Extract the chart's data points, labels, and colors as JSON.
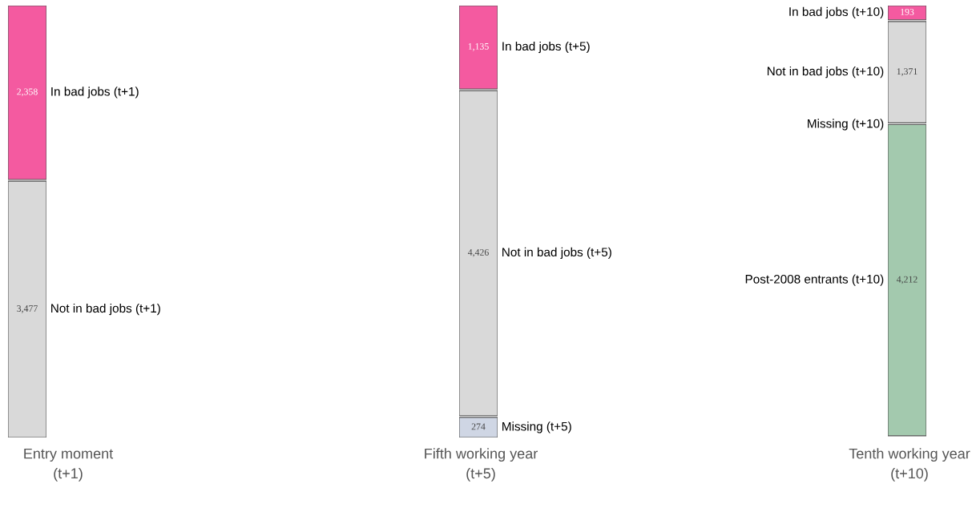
{
  "chart_data": [
    {
      "type": "other",
      "xlabel": "Entry moment\n(t+1)",
      "categories": [
        "In bad jobs (t+1)",
        "Not in bad jobs (t+1)"
      ],
      "values": [
        2358,
        3477
      ],
      "colors": [
        "#f45aa0",
        "#d9d9d9"
      ],
      "value_labels": [
        "2,358",
        "3,477"
      ]
    },
    {
      "type": "other",
      "xlabel": "Fifth working year\n(t+5)",
      "categories": [
        "In bad jobs (t+5)",
        "Not in bad jobs (t+5)",
        "Missing (t+5)"
      ],
      "values": [
        1135,
        4426,
        274
      ],
      "colors": [
        "#f45aa0",
        "#d9d9d9",
        "#cfd6e4"
      ],
      "value_labels": [
        "1,135",
        "4,426",
        "274"
      ]
    },
    {
      "type": "other",
      "xlabel": "Tenth working year\n(t+10)",
      "categories": [
        "In bad jobs (t+10)",
        "Not in bad jobs (t+10)",
        "Missing (t+10)",
        "Post-2008 entrants (t+10)"
      ],
      "values": [
        193,
        1371,
        null,
        4212
      ],
      "colors": [
        "#f45aa0",
        "#d9d9d9",
        "#cfd6e4",
        "#a3c9ae"
      ],
      "value_labels": [
        "193",
        "1,371",
        null,
        "4,212"
      ]
    }
  ]
}
